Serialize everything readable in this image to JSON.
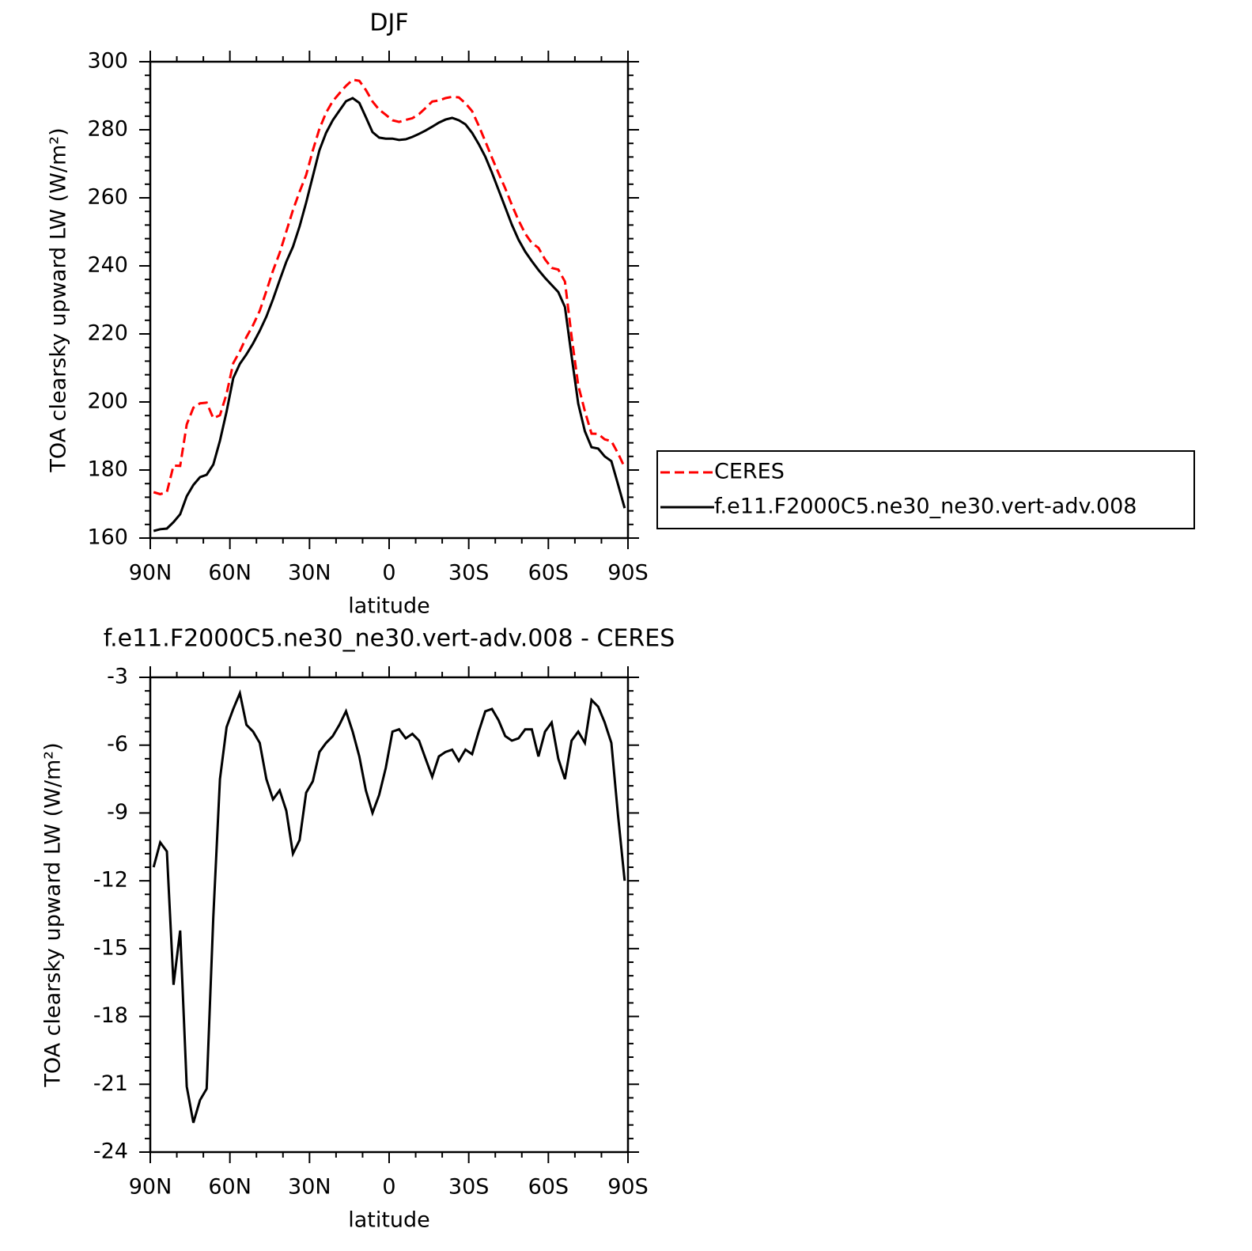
{
  "chart_data": [
    {
      "type": "line",
      "title": "DJF",
      "xlabel": "latitude",
      "ylabel": "TOA clearsky upward LW (W/m²)",
      "x": [
        88.75,
        86.25,
        83.75,
        81.25,
        78.75,
        76.25,
        73.75,
        71.25,
        68.75,
        66.25,
        63.75,
        61.25,
        58.75,
        56.25,
        53.75,
        51.25,
        48.75,
        46.25,
        43.75,
        41.25,
        38.75,
        36.25,
        33.75,
        31.25,
        28.75,
        26.25,
        23.75,
        21.25,
        18.75,
        16.25,
        13.75,
        11.25,
        8.75,
        6.25,
        3.75,
        1.25,
        -1.25,
        -3.75,
        -6.25,
        -8.75,
        -11.25,
        -13.75,
        -16.25,
        -18.75,
        -21.25,
        -23.75,
        -26.25,
        -28.75,
        -31.25,
        -33.75,
        -36.25,
        -38.75,
        -41.25,
        -43.75,
        -46.25,
        -48.75,
        -51.25,
        -53.75,
        -56.25,
        -58.75,
        -61.25,
        -63.75,
        -66.25,
        -68.75,
        -71.25,
        -73.75,
        -76.25,
        -78.75,
        -81.25,
        -83.75,
        -86.25,
        -88.75
      ],
      "xlim": [
        90,
        -90
      ],
      "xticks": [
        {
          "value": 90,
          "label": "90N"
        },
        {
          "value": 60,
          "label": "60N"
        },
        {
          "value": 30,
          "label": "30N"
        },
        0,
        {
          "value": -30,
          "label": "30S"
        },
        {
          "value": -60,
          "label": "60S"
        },
        {
          "value": -90,
          "label": "90S"
        }
      ],
      "ylim": [
        160,
        300
      ],
      "yticks": [
        160,
        180,
        200,
        220,
        240,
        260,
        280,
        300
      ],
      "legend": "right",
      "series": [
        {
          "name": "CERES",
          "color": "#ff0000",
          "linestyle": "dashed",
          "values": [
            173.5,
            172.9,
            173.5,
            181.3,
            181.2,
            193.4,
            198.3,
            199.6,
            199.8,
            195.2,
            196.1,
            202.4,
            211.4,
            214.9,
            219.1,
            222.6,
            226.8,
            232.6,
            238.6,
            243.8,
            250.1,
            256.4,
            261.8,
            266.7,
            273.9,
            280.3,
            285.0,
            288.4,
            290.7,
            292.9,
            294.7,
            294.4,
            291.7,
            288.3,
            285.9,
            284.4,
            282.8,
            282.3,
            282.9,
            283.4,
            284.6,
            286.4,
            288.3,
            288.6,
            289.3,
            289.7,
            289.5,
            287.8,
            285.5,
            281.2,
            276.6,
            271.8,
            267.2,
            262.8,
            257.9,
            253.4,
            249.5,
            246.7,
            245.3,
            241.9,
            239.4,
            238.9,
            235.4,
            219.3,
            204.9,
            197.3,
            190.7,
            190.6,
            189.0,
            188.5,
            184.9,
            180.8
          ]
        },
        {
          "name": "f.e11.F2000C5.ne30_ne30.vert-adv.008",
          "color": "#000000",
          "linestyle": "solid",
          "values": [
            162.1,
            162.6,
            162.8,
            164.7,
            167.0,
            172.3,
            175.6,
            177.9,
            178.6,
            181.6,
            188.6,
            197.2,
            207.0,
            211.2,
            214.0,
            217.2,
            220.9,
            225.1,
            230.2,
            235.8,
            241.2,
            245.6,
            251.6,
            258.6,
            266.3,
            274.0,
            279.1,
            282.8,
            285.6,
            288.4,
            289.3,
            287.9,
            283.7,
            279.3,
            277.7,
            277.4,
            277.4,
            277.0,
            277.2,
            277.9,
            278.8,
            279.8,
            280.9,
            282.1,
            283.0,
            283.5,
            282.8,
            281.6,
            279.1,
            275.8,
            272.1,
            267.4,
            262.3,
            257.2,
            252.1,
            247.7,
            244.2,
            241.4,
            238.8,
            236.5,
            234.4,
            232.3,
            227.9,
            213.5,
            199.5,
            191.4,
            186.7,
            186.3,
            184.0,
            182.6,
            175.8,
            168.8
          ]
        }
      ]
    },
    {
      "type": "line",
      "title": "f.e11.F2000C5.ne30_ne30.vert-adv.008 - CERES",
      "xlabel": "latitude",
      "ylabel": "TOA clearsky upward LW (W/m²)",
      "x": [
        88.75,
        86.25,
        83.75,
        81.25,
        78.75,
        76.25,
        73.75,
        71.25,
        68.75,
        66.25,
        63.75,
        61.25,
        58.75,
        56.25,
        53.75,
        51.25,
        48.75,
        46.25,
        43.75,
        41.25,
        38.75,
        36.25,
        33.75,
        31.25,
        28.75,
        26.25,
        23.75,
        21.25,
        18.75,
        16.25,
        13.75,
        11.25,
        8.75,
        6.25,
        3.75,
        1.25,
        -1.25,
        -3.75,
        -6.25,
        -8.75,
        -11.25,
        -13.75,
        -16.25,
        -18.75,
        -21.25,
        -23.75,
        -26.25,
        -28.75,
        -31.25,
        -33.75,
        -36.25,
        -38.75,
        -41.25,
        -43.75,
        -46.25,
        -48.75,
        -51.25,
        -53.75,
        -56.25,
        -58.75,
        -61.25,
        -63.75,
        -66.25,
        -68.75,
        -71.25,
        -73.75,
        -76.25,
        -78.75,
        -81.25,
        -83.75,
        -86.25,
        -88.75
      ],
      "xlim": [
        90,
        -90
      ],
      "xticks": [
        {
          "value": 90,
          "label": "90N"
        },
        {
          "value": 60,
          "label": "60N"
        },
        {
          "value": 30,
          "label": "30N"
        },
        0,
        {
          "value": -30,
          "label": "30S"
        },
        {
          "value": -60,
          "label": "60S"
        },
        {
          "value": -90,
          "label": "90S"
        }
      ],
      "ylim": [
        -24,
        -3
      ],
      "yticks": [
        -24,
        -21,
        -18,
        -15,
        -12,
        -9,
        -6,
        -3
      ],
      "color": "#000000",
      "values": [
        -11.4,
        -10.3,
        -10.7,
        -16.6,
        -14.2,
        -21.1,
        -22.7,
        -21.7,
        -21.2,
        -13.6,
        -7.5,
        -5.2,
        -4.4,
        -3.7,
        -5.1,
        -5.4,
        -5.9,
        -7.5,
        -8.4,
        -8.0,
        -8.9,
        -10.8,
        -10.2,
        -8.1,
        -7.6,
        -6.3,
        -5.9,
        -5.6,
        -5.1,
        -4.5,
        -5.4,
        -6.5,
        -8.0,
        -9.0,
        -8.2,
        -7.0,
        -5.4,
        -5.3,
        -5.7,
        -5.5,
        -5.8,
        -6.6,
        -7.4,
        -6.5,
        -6.3,
        -6.2,
        -6.7,
        -6.2,
        -6.4,
        -5.4,
        -4.5,
        -4.4,
        -4.9,
        -5.6,
        -5.8,
        -5.7,
        -5.3,
        -5.3,
        -6.5,
        -5.4,
        -5.0,
        -6.6,
        -7.5,
        -5.8,
        -5.4,
        -5.9,
        -4.0,
        -4.3,
        -5.0,
        -5.9,
        -9.1,
        -12.0
      ]
    }
  ]
}
